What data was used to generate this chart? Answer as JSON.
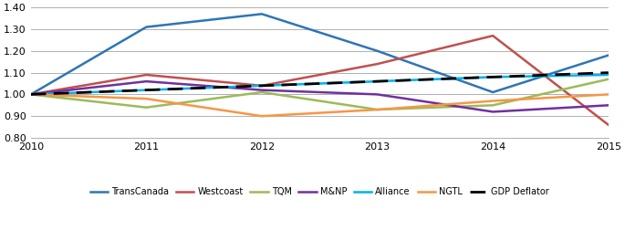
{
  "years": [
    2010,
    2011,
    2012,
    2013,
    2014,
    2015
  ],
  "series": {
    "TransCanada": [
      1.0,
      1.31,
      1.37,
      1.2,
      1.01,
      1.18
    ],
    "Westcoast": [
      1.0,
      1.09,
      1.04,
      1.14,
      1.27,
      0.86
    ],
    "TQM": [
      1.0,
      0.94,
      1.01,
      0.93,
      0.95,
      1.07
    ],
    "M&NP": [
      1.0,
      1.06,
      1.02,
      1.0,
      0.92,
      0.95
    ],
    "Alliance": [
      1.0,
      1.02,
      1.04,
      1.06,
      1.08,
      1.09
    ],
    "NGTL": [
      1.0,
      0.98,
      0.9,
      0.93,
      0.97,
      1.0
    ],
    "GDP Deflator": [
      1.0,
      1.02,
      1.04,
      1.06,
      1.08,
      1.1
    ]
  },
  "colors": {
    "TransCanada": "#2E75B6",
    "Westcoast": "#C0504D",
    "TQM": "#9BBB59",
    "M&NP": "#7030A0",
    "Alliance": "#00B0F0",
    "NGTL": "#F79646",
    "GDP Deflator": "#000000"
  },
  "ylim": [
    0.8,
    1.4
  ],
  "yticks": [
    0.8,
    0.9,
    1.0,
    1.1,
    1.2,
    1.3,
    1.4
  ],
  "xlim": [
    2010,
    2015
  ],
  "xticks": [
    2010,
    2011,
    2012,
    2013,
    2014,
    2015
  ],
  "legend_order": [
    "TransCanada",
    "Westcoast",
    "TQM",
    "M&NP",
    "Alliance",
    "NGTL",
    "GDP Deflator"
  ],
  "linewidth": 1.8,
  "gdp_linewidth": 2.0
}
